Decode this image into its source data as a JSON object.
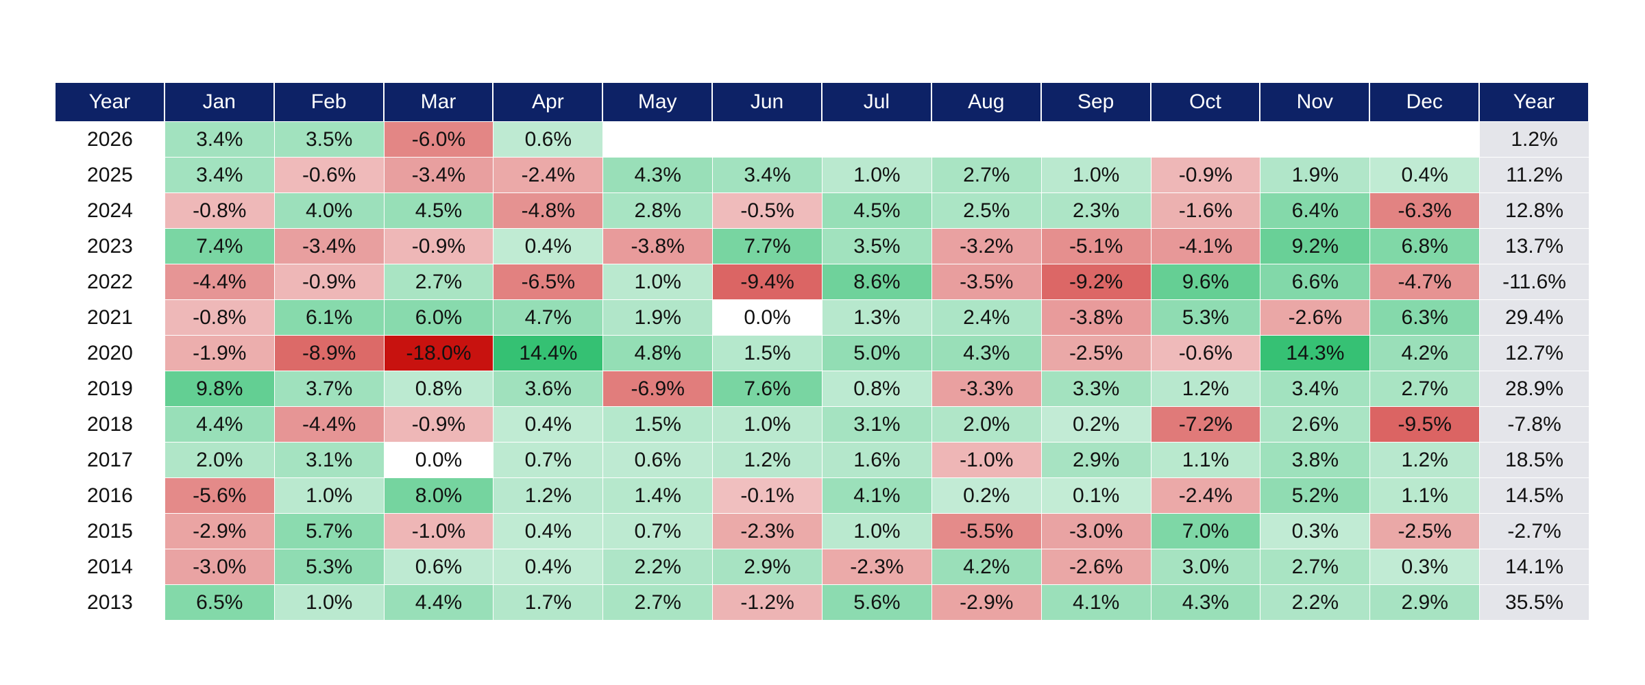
{
  "table": {
    "header": [
      "Year",
      "Jan",
      "Feb",
      "Mar",
      "Apr",
      "May",
      "Jun",
      "Jul",
      "Aug",
      "Sep",
      "Oct",
      "Nov",
      "Dec",
      "Year"
    ],
    "rows": [
      [
        "2026",
        "3.4%",
        "3.5%",
        "-6.0%",
        "0.6%",
        null,
        null,
        null,
        null,
        null,
        null,
        null,
        null,
        "1.2%"
      ],
      [
        "2025",
        "3.4%",
        "-0.6%",
        "-3.4%",
        "-2.4%",
        "4.3%",
        "3.4%",
        "1.0%",
        "2.7%",
        "1.0%",
        "-0.9%",
        "1.9%",
        "0.4%",
        "11.2%"
      ],
      [
        "2024",
        "-0.8%",
        "4.0%",
        "4.5%",
        "-4.8%",
        "2.8%",
        "-0.5%",
        "4.5%",
        "2.5%",
        "2.3%",
        "-1.6%",
        "6.4%",
        "-6.3%",
        "12.8%"
      ],
      [
        "2023",
        "7.4%",
        "-3.4%",
        "-0.9%",
        "0.4%",
        "-3.8%",
        "7.7%",
        "3.5%",
        "-3.2%",
        "-5.1%",
        "-4.1%",
        "9.2%",
        "6.8%",
        "13.7%"
      ],
      [
        "2022",
        "-4.4%",
        "-0.9%",
        "2.7%",
        "-6.5%",
        "1.0%",
        "-9.4%",
        "8.6%",
        "-3.5%",
        "-9.2%",
        "9.6%",
        "6.6%",
        "-4.7%",
        "-11.6%"
      ],
      [
        "2021",
        "-0.8%",
        "6.1%",
        "6.0%",
        "4.7%",
        "1.9%",
        "0.0%",
        "1.3%",
        "2.4%",
        "-3.8%",
        "5.3%",
        "-2.6%",
        "6.3%",
        "29.4%"
      ],
      [
        "2020",
        "-1.9%",
        "-8.9%",
        "-18.0%",
        "14.4%",
        "4.8%",
        "1.5%",
        "5.0%",
        "4.3%",
        "-2.5%",
        "-0.6%",
        "14.3%",
        "4.2%",
        "12.7%"
      ],
      [
        "2019",
        "9.8%",
        "3.7%",
        "0.8%",
        "3.6%",
        "-6.9%",
        "7.6%",
        "0.8%",
        "-3.3%",
        "3.3%",
        "1.2%",
        "3.4%",
        "2.7%",
        "28.9%"
      ],
      [
        "2018",
        "4.4%",
        "-4.4%",
        "-0.9%",
        "0.4%",
        "1.5%",
        "1.0%",
        "3.1%",
        "2.0%",
        "0.2%",
        "-7.2%",
        "2.6%",
        "-9.5%",
        "-7.8%"
      ],
      [
        "2017",
        "2.0%",
        "3.1%",
        "0.0%",
        "0.7%",
        "0.6%",
        "1.2%",
        "1.6%",
        "-1.0%",
        "2.9%",
        "1.1%",
        "3.8%",
        "1.2%",
        "18.5%"
      ],
      [
        "2016",
        "-5.6%",
        "1.0%",
        "8.0%",
        "1.2%",
        "1.4%",
        "-0.1%",
        "4.1%",
        "0.2%",
        "0.1%",
        "-2.4%",
        "5.2%",
        "1.1%",
        "14.5%"
      ],
      [
        "2015",
        "-2.9%",
        "5.7%",
        "-1.0%",
        "0.4%",
        "0.7%",
        "-2.3%",
        "1.0%",
        "-5.5%",
        "-3.0%",
        "7.0%",
        "0.3%",
        "-2.5%",
        "-2.7%"
      ],
      [
        "2014",
        "-3.0%",
        "5.3%",
        "0.6%",
        "0.4%",
        "2.2%",
        "2.9%",
        "-2.3%",
        "4.2%",
        "-2.6%",
        "3.0%",
        "2.7%",
        "0.3%",
        "14.1%"
      ],
      [
        "2013",
        "6.5%",
        "1.0%",
        "4.4%",
        "1.7%",
        "2.7%",
        "-1.2%",
        "5.6%",
        "-2.9%",
        "4.1%",
        "4.3%",
        "2.2%",
        "2.9%",
        "35.5%"
      ]
    ]
  }
}
